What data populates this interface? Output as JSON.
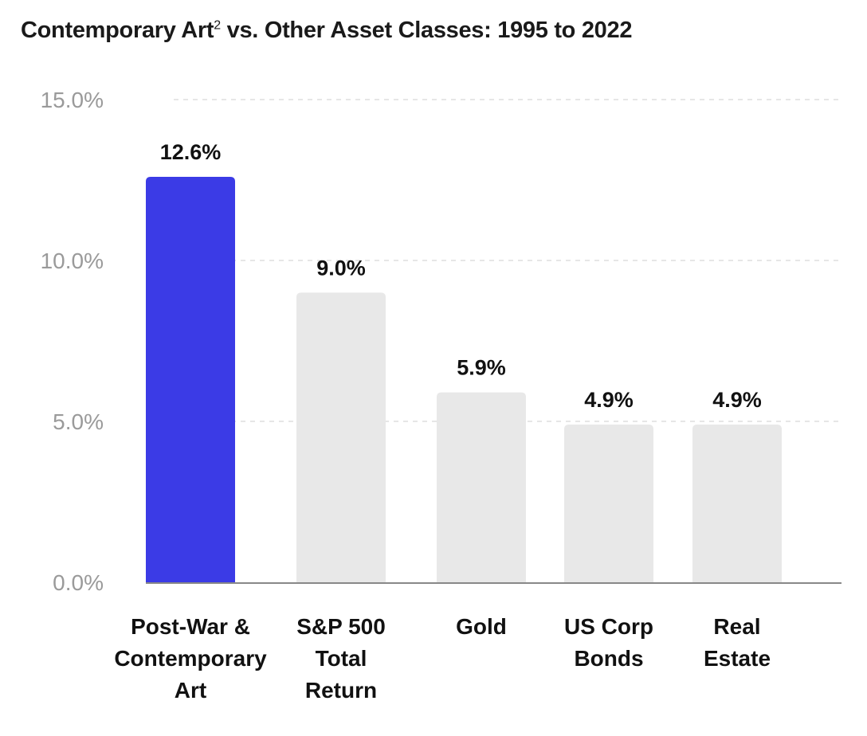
{
  "title": {
    "main": "Contemporary Art",
    "sup": "2",
    "rest": " vs. Other Asset Classes: 1995 to 2022"
  },
  "chart_data": {
    "type": "bar",
    "title": "Contemporary Art² vs. Other Asset Classes: 1995 to 2022",
    "categories": [
      [
        "Post-War &",
        "Contemporary",
        "Art"
      ],
      [
        "S&P 500",
        "Total",
        "Return"
      ],
      [
        "Gold"
      ],
      [
        "US Corp",
        "Bonds"
      ],
      [
        "Real",
        "Estate"
      ]
    ],
    "values": [
      12.6,
      9.0,
      5.9,
      4.9,
      4.9
    ],
    "value_labels": [
      "12.6%",
      "9.0%",
      "5.9%",
      "4.9%",
      "4.9%"
    ],
    "yticks": [
      0,
      5,
      10,
      15
    ],
    "ytick_labels": [
      "0.0%",
      "5.0%",
      "10.0%",
      "15.0%"
    ],
    "ylim": [
      0,
      15
    ],
    "grid": true,
    "colors": {
      "highlight": "#3b3be6",
      "default": "#e8e8e8",
      "grid": "#dddddd",
      "axis": "#888888"
    }
  }
}
